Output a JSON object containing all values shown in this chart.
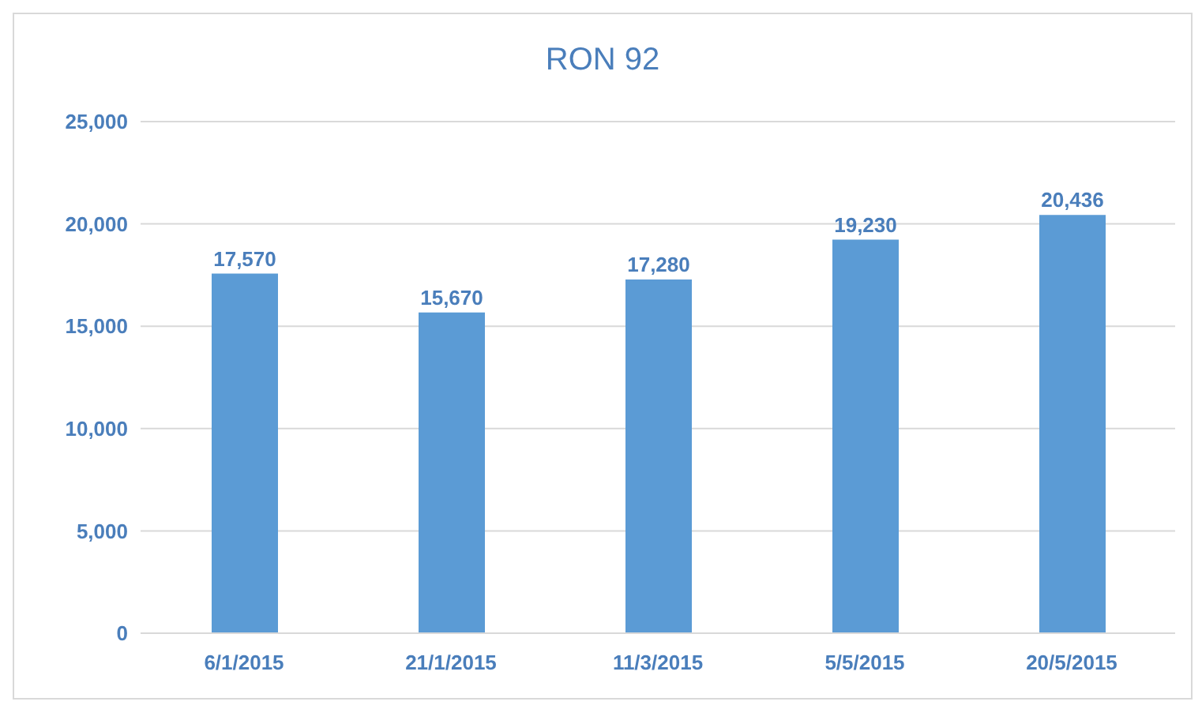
{
  "chart_data": {
    "type": "bar",
    "title": "RON 92",
    "categories": [
      "6/1/2015",
      "21/1/2015",
      "11/3/2015",
      "5/5/2015",
      "20/5/2015"
    ],
    "values": [
      17570,
      15670,
      17280,
      19230,
      20436
    ],
    "value_labels": [
      "17,570",
      "15,670",
      "17,280",
      "19,230",
      "20,436"
    ],
    "color": "#5b9bd5",
    "ylim": [
      0,
      25000
    ],
    "yticks": [
      {
        "value": 0,
        "label": "0"
      },
      {
        "value": 5000,
        "label": "5,000"
      },
      {
        "value": 10000,
        "label": "10,000"
      },
      {
        "value": 15000,
        "label": "15,000"
      },
      {
        "value": 20000,
        "label": "20,000"
      },
      {
        "value": 25000,
        "label": "25,000"
      }
    ],
    "grid": "y",
    "legend": false
  }
}
